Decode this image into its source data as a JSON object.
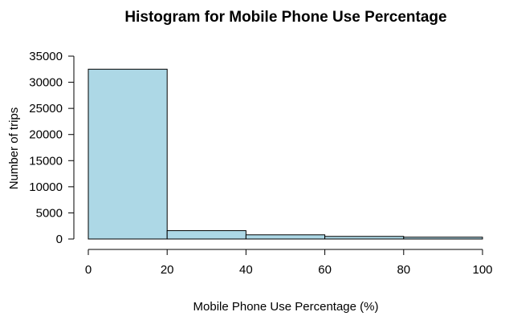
{
  "chart_data": {
    "type": "bar",
    "title": "Histogram for Mobile Phone Use Percentage",
    "xlabel": "Mobile Phone Use Percentage (%)",
    "ylabel": "Number of trips",
    "bins": [
      {
        "x0": 0,
        "x1": 20,
        "count": 32500
      },
      {
        "x0": 20,
        "x1": 40,
        "count": 1600
      },
      {
        "x0": 40,
        "x1": 60,
        "count": 800
      },
      {
        "x0": 60,
        "x1": 80,
        "count": 500
      },
      {
        "x0": 80,
        "x1": 100,
        "count": 350
      }
    ],
    "xlim": [
      0,
      100
    ],
    "ylim": [
      0,
      35000
    ],
    "x_ticks": [
      0,
      20,
      40,
      60,
      80,
      100
    ],
    "y_ticks": [
      0,
      5000,
      10000,
      15000,
      20000,
      25000,
      30000,
      35000
    ],
    "bar_color": "#add8e6",
    "grid": false
  }
}
